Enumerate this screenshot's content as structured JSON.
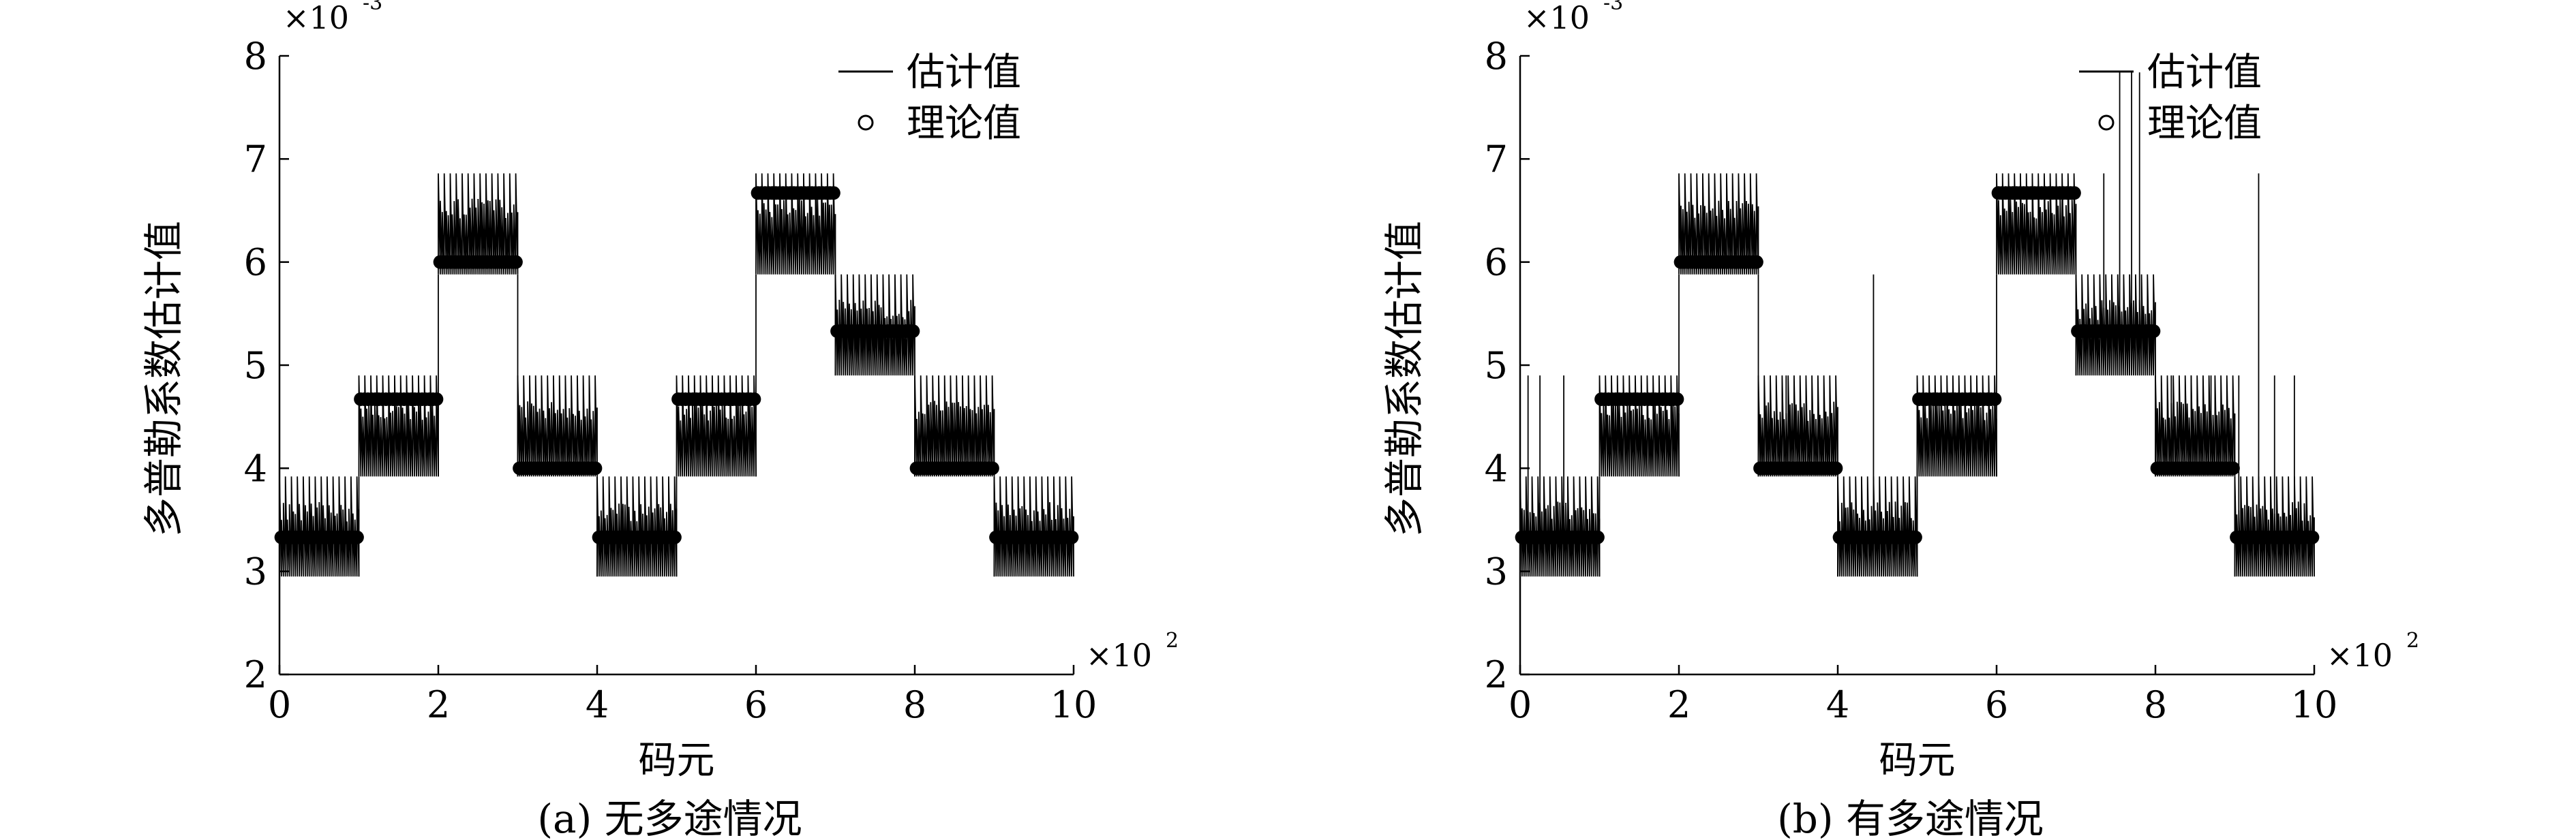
{
  "chart_data": [
    {
      "type": "line",
      "caption": "(a) 无多途情况",
      "xlabel": "码元",
      "ylabel": "多普勒系数估计值",
      "xlim": [
        0,
        10
      ],
      "ylim": [
        2,
        8
      ],
      "x_multiplier": "×10",
      "x_multiplier_exp": "2",
      "y_multiplier": "×10",
      "y_multiplier_exp": "-3",
      "xticks": [
        "0",
        "2",
        "4",
        "6",
        "8",
        "10"
      ],
      "yticks": [
        "2",
        "3",
        "4",
        "5",
        "6",
        "7",
        "8"
      ],
      "legend_position": "top-right",
      "series": [
        {
          "name": "估计值",
          "style": "line",
          "segments": [
            {
              "x_start": 0,
              "x_end": 1,
              "bands": [
                [
                  2.95,
                  3.92
                ]
              ]
            },
            {
              "x_start": 1,
              "x_end": 2,
              "bands": [
                [
                  3.92,
                  4.9
                ]
              ]
            },
            {
              "x_start": 2,
              "x_end": 3,
              "bands": [
                [
                  5.88,
                  6.86
                ]
              ]
            },
            {
              "x_start": 3,
              "x_end": 4,
              "bands": [
                [
                  3.92,
                  4.9
                ]
              ]
            },
            {
              "x_start": 4,
              "x_end": 5,
              "bands": [
                [
                  2.95,
                  3.92
                ]
              ]
            },
            {
              "x_start": 5,
              "x_end": 6,
              "bands": [
                [
                  3.92,
                  4.9
                ]
              ]
            },
            {
              "x_start": 6,
              "x_end": 7,
              "bands": [
                [
                  5.88,
                  6.86
                ]
              ]
            },
            {
              "x_start": 7,
              "x_end": 8,
              "bands": [
                [
                  4.9,
                  5.88
                ]
              ]
            },
            {
              "x_start": 8,
              "x_end": 9,
              "bands": [
                [
                  3.92,
                  4.9
                ]
              ]
            },
            {
              "x_start": 9,
              "x_end": 10,
              "bands": [
                [
                  2.95,
                  3.92
                ]
              ]
            }
          ],
          "spikes": []
        },
        {
          "name": "理论值",
          "style": "circle",
          "segments": [
            {
              "x_start": 0,
              "x_end": 1,
              "y": 3.33
            },
            {
              "x_start": 1,
              "x_end": 2,
              "y": 4.67
            },
            {
              "x_start": 2,
              "x_end": 3,
              "y": 6.0
            },
            {
              "x_start": 3,
              "x_end": 4,
              "y": 4.0
            },
            {
              "x_start": 4,
              "x_end": 5,
              "y": 3.33
            },
            {
              "x_start": 5,
              "x_end": 6,
              "y": 4.67
            },
            {
              "x_start": 6,
              "x_end": 7,
              "y": 6.67
            },
            {
              "x_start": 7,
              "x_end": 8,
              "y": 5.33
            },
            {
              "x_start": 8,
              "x_end": 9,
              "y": 4.0
            },
            {
              "x_start": 9,
              "x_end": 10,
              "y": 3.33
            }
          ]
        }
      ]
    },
    {
      "type": "line",
      "caption": "(b) 有多途情况",
      "xlabel": "码元",
      "ylabel": "多普勒系数估计值",
      "xlim": [
        0,
        10
      ],
      "ylim": [
        2,
        8
      ],
      "x_multiplier": "×10",
      "x_multiplier_exp": "2",
      "y_multiplier": "×10",
      "y_multiplier_exp": "-3",
      "xticks": [
        "0",
        "2",
        "4",
        "6",
        "8",
        "10"
      ],
      "yticks": [
        "2",
        "3",
        "4",
        "5",
        "6",
        "7",
        "8"
      ],
      "legend_position": "top-right",
      "series": [
        {
          "name": "估计值",
          "style": "line",
          "segments": [
            {
              "x_start": 0,
              "x_end": 1,
              "bands": [
                [
                  2.95,
                  3.92
                ]
              ]
            },
            {
              "x_start": 1,
              "x_end": 2,
              "bands": [
                [
                  3.92,
                  4.9
                ]
              ]
            },
            {
              "x_start": 2,
              "x_end": 3,
              "bands": [
                [
                  5.88,
                  6.86
                ]
              ]
            },
            {
              "x_start": 3,
              "x_end": 4,
              "bands": [
                [
                  3.92,
                  4.9
                ]
              ]
            },
            {
              "x_start": 4,
              "x_end": 5,
              "bands": [
                [
                  2.95,
                  3.92
                ]
              ]
            },
            {
              "x_start": 5,
              "x_end": 6,
              "bands": [
                [
                  3.92,
                  4.9
                ]
              ]
            },
            {
              "x_start": 6,
              "x_end": 7,
              "bands": [
                [
                  5.88,
                  6.86
                ]
              ]
            },
            {
              "x_start": 7,
              "x_end": 8,
              "bands": [
                [
                  4.9,
                  5.88
                ]
              ]
            },
            {
              "x_start": 8,
              "x_end": 9,
              "bands": [
                [
                  3.92,
                  4.9
                ]
              ]
            },
            {
              "x_start": 9,
              "x_end": 10,
              "bands": [
                [
                  2.95,
                  3.92
                ]
              ]
            }
          ],
          "spikes": [
            {
              "x": 0.1,
              "y0": 3.33,
              "y1": 4.9
            },
            {
              "x": 0.25,
              "y0": 3.33,
              "y1": 4.9
            },
            {
              "x": 0.55,
              "y0": 3.33,
              "y1": 4.9
            },
            {
              "x": 3.35,
              "y0": 4.0,
              "y1": 4.9
            },
            {
              "x": 4.45,
              "y0": 3.33,
              "y1": 5.88
            },
            {
              "x": 5.0,
              "y0": 4.67,
              "y1": 2.95
            },
            {
              "x": 7.35,
              "y0": 5.33,
              "y1": 6.86
            },
            {
              "x": 7.55,
              "y0": 5.33,
              "y1": 7.84
            },
            {
              "x": 7.7,
              "y0": 5.33,
              "y1": 7.84
            },
            {
              "x": 7.8,
              "y0": 5.33,
              "y1": 7.84
            },
            {
              "x": 8.2,
              "y0": 4.0,
              "y1": 4.9
            },
            {
              "x": 8.45,
              "y0": 4.0,
              "y1": 4.9
            },
            {
              "x": 8.7,
              "y0": 4.0,
              "y1": 4.9
            },
            {
              "x": 9.05,
              "y0": 3.33,
              "y1": 4.9
            },
            {
              "x": 9.3,
              "y0": 3.33,
              "y1": 6.86
            },
            {
              "x": 9.5,
              "y0": 3.33,
              "y1": 4.9
            },
            {
              "x": 9.75,
              "y0": 3.33,
              "y1": 4.9
            }
          ]
        },
        {
          "name": "理论值",
          "style": "circle",
          "segments": [
            {
              "x_start": 0,
              "x_end": 1,
              "y": 3.33
            },
            {
              "x_start": 1,
              "x_end": 2,
              "y": 4.67
            },
            {
              "x_start": 2,
              "x_end": 3,
              "y": 6.0
            },
            {
              "x_start": 3,
              "x_end": 4,
              "y": 4.0
            },
            {
              "x_start": 4,
              "x_end": 5,
              "y": 3.33
            },
            {
              "x_start": 5,
              "x_end": 6,
              "y": 4.67
            },
            {
              "x_start": 6,
              "x_end": 7,
              "y": 6.67
            },
            {
              "x_start": 7,
              "x_end": 8,
              "y": 5.33
            },
            {
              "x_start": 8,
              "x_end": 9,
              "y": 4.0
            },
            {
              "x_start": 9,
              "x_end": 10,
              "y": 3.33
            }
          ]
        }
      ]
    }
  ]
}
